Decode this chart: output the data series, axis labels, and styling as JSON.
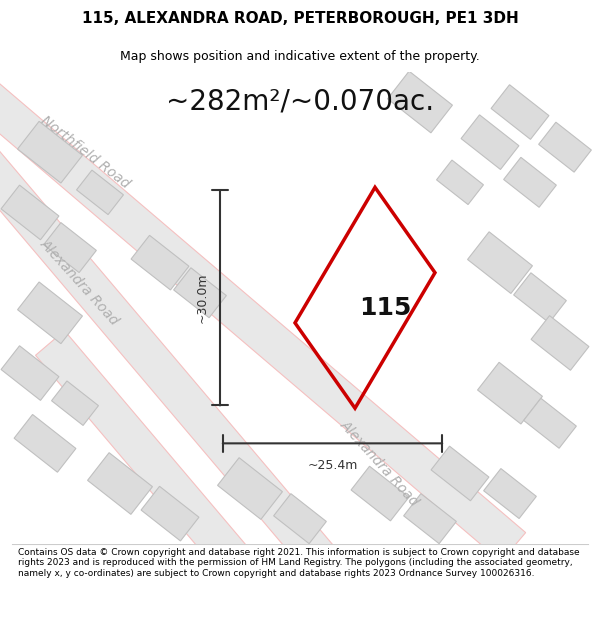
{
  "title_line1": "115, ALEXANDRA ROAD, PETERBOROUGH, PE1 3DH",
  "title_line2": "Map shows position and indicative extent of the property.",
  "area_text": "~282m²/~0.070ac.",
  "dim_vertical": "~30.0m",
  "dim_horizontal": "~25.4m",
  "property_number": "115",
  "footer_text": "Contains OS data © Crown copyright and database right 2021. This information is subject to Crown copyright and database rights 2023 and is reproduced with the permission of HM Land Registry. The polygons (including the associated geometry, namely x, y co-ordinates) are subject to Crown copyright and database rights 2023 Ordnance Survey 100026316.",
  "bg_color": "#f0f0f0",
  "map_bg": "#f5f5f5",
  "road_fill": "#e8e8e8",
  "road_stroke": "#e8a0a0",
  "property_stroke": "#cc0000",
  "dim_color": "#333333",
  "text_color": "#aaaaaa",
  "title_color": "#000000",
  "footer_color": "#000000"
}
